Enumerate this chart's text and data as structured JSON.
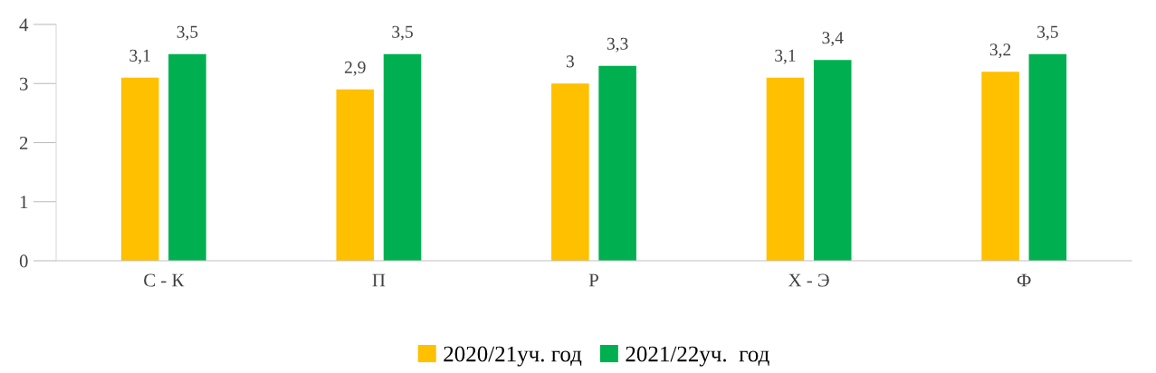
{
  "chart_data": {
    "type": "bar",
    "categories": [
      "С - К",
      "П",
      "Р",
      "Х - Э",
      "Ф"
    ],
    "series": [
      {
        "name": "2020/21уч. год",
        "color": "#ffc000",
        "values": [
          3.1,
          2.9,
          3,
          3.1,
          3.2
        ],
        "value_labels": [
          "3,1",
          "2,9",
          "3",
          "3,1",
          "3,2"
        ]
      },
      {
        "name": "2021/22уч.  год",
        "color": "#00b050",
        "values": [
          3.5,
          3.5,
          3.3,
          3.4,
          3.5
        ],
        "value_labels": [
          "3,5",
          "3,5",
          "3,3",
          "3,4",
          "3,5"
        ]
      }
    ],
    "ylim": [
      0,
      4
    ],
    "yticks": [
      0,
      1,
      2,
      3,
      4
    ],
    "grid": false,
    "legend": "bottom"
  }
}
